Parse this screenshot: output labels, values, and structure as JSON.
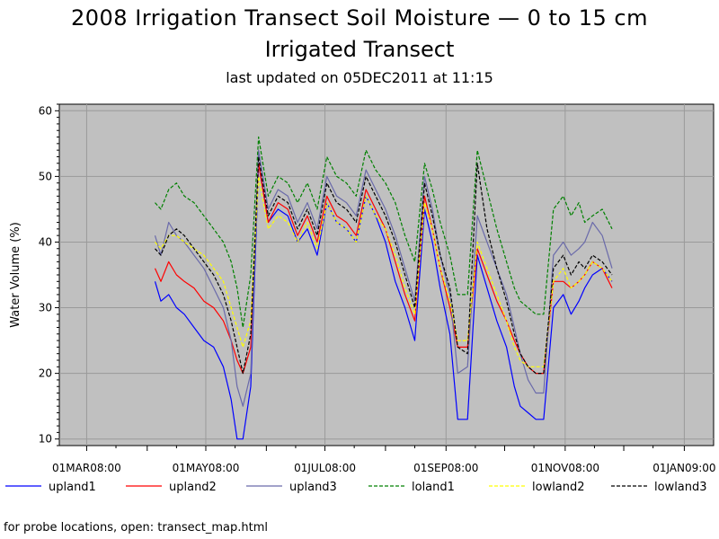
{
  "header": {
    "title": "2008 Irrigation Transect Soil Moisture — 0 to 15 cm",
    "subtitle": "Irrigated Transect",
    "updated": "last updated on 05DEC2011 at 11:15"
  },
  "footer": {
    "note": "for probe locations, open: transect_map.html"
  },
  "chart_data": {
    "type": "line",
    "title": "2008 Irrigation Transect Soil Moisture — 0 to 15 cm",
    "subtitle": "Irrigated Transect",
    "xlabel": "",
    "ylabel": "Water Volume (%)",
    "xlim": [
      "2008-02-16",
      "2009-01-16"
    ],
    "ylim": [
      9,
      61
    ],
    "yticks": [
      10,
      20,
      30,
      40,
      50,
      60
    ],
    "xticks": [
      {
        "date": "2008-03-01",
        "label": "01MAR08:00"
      },
      {
        "date": "2008-05-01",
        "label": "01MAY08:00"
      },
      {
        "date": "2008-07-01",
        "label": "01JUL08:00"
      },
      {
        "date": "2008-09-01",
        "label": "01SEP08:00"
      },
      {
        "date": "2008-11-01",
        "label": "01NOV08:00"
      },
      {
        "date": "2009-01-01",
        "label": "01JAN09:00"
      }
    ],
    "grid": true,
    "background": "#c0c0c0",
    "legend_position": "bottom",
    "series": [
      {
        "name": "upland1",
        "color": "#0000ff",
        "dash": "solid",
        "x": [
          "2008-04-05",
          "2008-04-08",
          "2008-04-12",
          "2008-04-16",
          "2008-04-20",
          "2008-04-25",
          "2008-04-30",
          "2008-05-05",
          "2008-05-10",
          "2008-05-14",
          "2008-05-17",
          "2008-05-20",
          "2008-05-24",
          "2008-05-28",
          "2008-06-02",
          "2008-06-07",
          "2008-06-12",
          "2008-06-17",
          "2008-06-22",
          "2008-06-27",
          "2008-07-02",
          "2008-07-07",
          "2008-07-12",
          "2008-07-17",
          "2008-07-22",
          "2008-07-27",
          "2008-08-01",
          "2008-08-06",
          "2008-08-11",
          "2008-08-16",
          "2008-08-21",
          "2008-08-25",
          "2008-08-29",
          "2008-09-03",
          "2008-09-07",
          "2008-09-12",
          "2008-09-17",
          "2008-09-22",
          "2008-09-27",
          "2008-10-02",
          "2008-10-06",
          "2008-10-09",
          "2008-10-13",
          "2008-10-17",
          "2008-10-21",
          "2008-10-26",
          "2008-10-31",
          "2008-11-04",
          "2008-11-08",
          "2008-11-11",
          "2008-11-15",
          "2008-11-20",
          "2008-11-25"
        ],
        "y": [
          34,
          31,
          32,
          30,
          29,
          27,
          25,
          24,
          21,
          16,
          10,
          10,
          18,
          52,
          43,
          45,
          44,
          40,
          42,
          38,
          46,
          43,
          42,
          40,
          47,
          44,
          40,
          34,
          30,
          25,
          45,
          40,
          33,
          26,
          13,
          13,
          38,
          33,
          28,
          24,
          18,
          15,
          14,
          13,
          13,
          30,
          32,
          29,
          31,
          33,
          35,
          36,
          34
        ]
      },
      {
        "name": "upland2",
        "color": "#ff0000",
        "dash": "solid",
        "x": [
          "2008-04-05",
          "2008-04-08",
          "2008-04-12",
          "2008-04-16",
          "2008-04-20",
          "2008-04-25",
          "2008-04-30",
          "2008-05-05",
          "2008-05-10",
          "2008-05-14",
          "2008-05-17",
          "2008-05-20",
          "2008-05-24",
          "2008-05-28",
          "2008-06-02",
          "2008-06-07",
          "2008-06-12",
          "2008-06-17",
          "2008-06-22",
          "2008-06-27",
          "2008-07-02",
          "2008-07-07",
          "2008-07-12",
          "2008-07-17",
          "2008-07-22",
          "2008-07-27",
          "2008-08-01",
          "2008-08-06",
          "2008-08-11",
          "2008-08-16",
          "2008-08-21",
          "2008-08-25",
          "2008-08-29",
          "2008-09-03",
          "2008-09-07",
          "2008-09-12",
          "2008-09-17",
          "2008-09-22",
          "2008-09-27",
          "2008-10-02",
          "2008-10-06",
          "2008-10-09",
          "2008-10-13",
          "2008-10-17",
          "2008-10-21",
          "2008-10-26",
          "2008-10-31",
          "2008-11-04",
          "2008-11-08",
          "2008-11-11",
          "2008-11-15",
          "2008-11-20",
          "2008-11-25"
        ],
        "y": [
          36,
          34,
          37,
          35,
          34,
          33,
          31,
          30,
          28,
          25,
          22,
          20,
          24,
          52,
          43,
          46,
          45,
          41,
          44,
          40,
          47,
          44,
          43,
          41,
          48,
          45,
          42,
          37,
          32,
          28,
          47,
          42,
          36,
          30,
          24,
          24,
          39,
          35,
          31,
          28,
          25,
          23,
          21,
          20,
          20,
          34,
          34,
          33,
          34,
          35,
          37,
          36,
          33
        ]
      },
      {
        "name": "upland3",
        "color": "#6a6aaa",
        "dash": "solid",
        "x": [
          "2008-04-05",
          "2008-04-08",
          "2008-04-12",
          "2008-04-16",
          "2008-04-20",
          "2008-04-25",
          "2008-04-30",
          "2008-05-05",
          "2008-05-10",
          "2008-05-14",
          "2008-05-17",
          "2008-05-20",
          "2008-05-24",
          "2008-05-28",
          "2008-06-02",
          "2008-06-07",
          "2008-06-12",
          "2008-06-17",
          "2008-06-22",
          "2008-06-27",
          "2008-07-02",
          "2008-07-07",
          "2008-07-12",
          "2008-07-17",
          "2008-07-22",
          "2008-07-27",
          "2008-08-01",
          "2008-08-06",
          "2008-08-11",
          "2008-08-16",
          "2008-08-21",
          "2008-08-25",
          "2008-08-29",
          "2008-09-03",
          "2008-09-07",
          "2008-09-12",
          "2008-09-17",
          "2008-09-22",
          "2008-09-27",
          "2008-10-02",
          "2008-10-06",
          "2008-10-09",
          "2008-10-13",
          "2008-10-17",
          "2008-10-21",
          "2008-10-26",
          "2008-10-31",
          "2008-11-04",
          "2008-11-08",
          "2008-11-11",
          "2008-11-15",
          "2008-11-20",
          "2008-11-25"
        ],
        "y": [
          41,
          38,
          43,
          41,
          40,
          38,
          36,
          33,
          30,
          25,
          18,
          15,
          20,
          54,
          45,
          48,
          47,
          43,
          46,
          42,
          50,
          47,
          46,
          44,
          51,
          48,
          45,
          41,
          36,
          31,
          50,
          45,
          38,
          32,
          20,
          21,
          44,
          40,
          36,
          32,
          27,
          23,
          19,
          17,
          17,
          38,
          40,
          38,
          39,
          40,
          43,
          41,
          36
        ]
      },
      {
        "name": "loland1",
        "color": "#008000",
        "dash": "dashed",
        "x": [
          "2008-04-05",
          "2008-04-08",
          "2008-04-12",
          "2008-04-16",
          "2008-04-20",
          "2008-04-25",
          "2008-04-30",
          "2008-05-05",
          "2008-05-10",
          "2008-05-14",
          "2008-05-17",
          "2008-05-20",
          "2008-05-24",
          "2008-05-28",
          "2008-06-02",
          "2008-06-07",
          "2008-06-12",
          "2008-06-17",
          "2008-06-22",
          "2008-06-27",
          "2008-07-02",
          "2008-07-07",
          "2008-07-12",
          "2008-07-17",
          "2008-07-22",
          "2008-07-27",
          "2008-08-01",
          "2008-08-06",
          "2008-08-11",
          "2008-08-16",
          "2008-08-21",
          "2008-08-25",
          "2008-08-29",
          "2008-09-03",
          "2008-09-07",
          "2008-09-12",
          "2008-09-17",
          "2008-09-22",
          "2008-09-27",
          "2008-10-02",
          "2008-10-06",
          "2008-10-09",
          "2008-10-13",
          "2008-10-17",
          "2008-10-21",
          "2008-10-26",
          "2008-10-31",
          "2008-11-04",
          "2008-11-08",
          "2008-11-11",
          "2008-11-15",
          "2008-11-20",
          "2008-11-25"
        ],
        "y": [
          46,
          45,
          48,
          49,
          47,
          46,
          44,
          42,
          40,
          37,
          33,
          27,
          35,
          56,
          47,
          50,
          49,
          46,
          49,
          45,
          53,
          50,
          49,
          47,
          54,
          51,
          49,
          46,
          41,
          37,
          52,
          48,
          43,
          38,
          32,
          32,
          54,
          48,
          42,
          37,
          33,
          31,
          30,
          29,
          29,
          45,
          47,
          44,
          46,
          43,
          44,
          45,
          42
        ]
      },
      {
        "name": "lowland2",
        "color": "#ffff00",
        "dash": "dashed",
        "x": [
          "2008-04-05",
          "2008-04-08",
          "2008-04-12",
          "2008-04-16",
          "2008-04-20",
          "2008-04-25",
          "2008-04-30",
          "2008-05-05",
          "2008-05-10",
          "2008-05-14",
          "2008-05-17",
          "2008-05-20",
          "2008-05-24",
          "2008-05-28",
          "2008-06-02",
          "2008-06-07",
          "2008-06-12",
          "2008-06-17",
          "2008-06-22",
          "2008-06-27",
          "2008-07-02",
          "2008-07-07",
          "2008-07-12",
          "2008-07-17",
          "2008-07-22",
          "2008-07-27",
          "2008-08-01",
          "2008-08-06",
          "2008-08-11",
          "2008-08-16",
          "2008-08-21",
          "2008-08-25",
          "2008-08-29",
          "2008-09-03",
          "2008-09-07",
          "2008-09-12",
          "2008-09-17",
          "2008-09-22",
          "2008-09-27",
          "2008-10-02",
          "2008-10-06",
          "2008-10-09",
          "2008-10-13",
          "2008-10-17",
          "2008-10-21",
          "2008-10-26",
          "2008-10-31",
          "2008-11-04",
          "2008-11-08",
          "2008-11-11",
          "2008-11-15",
          "2008-11-20",
          "2008-11-25"
        ],
        "y": [
          40,
          39,
          41,
          41,
          40,
          39,
          38,
          36,
          34,
          30,
          27,
          24,
          28,
          50,
          42,
          44,
          43,
          40,
          43,
          39,
          46,
          43,
          42,
          40,
          47,
          44,
          42,
          38,
          33,
          29,
          46,
          42,
          36,
          31,
          25,
          25,
          40,
          36,
          32,
          28,
          24,
          22,
          21,
          21,
          21,
          34,
          36,
          33,
          34,
          35,
          37,
          36,
          34
        ]
      },
      {
        "name": "lowland3",
        "color": "#000000",
        "dash": "dashed",
        "x": [
          "2008-04-05",
          "2008-04-08",
          "2008-04-12",
          "2008-04-16",
          "2008-04-20",
          "2008-04-25",
          "2008-04-30",
          "2008-05-05",
          "2008-05-10",
          "2008-05-14",
          "2008-05-17",
          "2008-05-20",
          "2008-05-24",
          "2008-05-28",
          "2008-06-02",
          "2008-06-07",
          "2008-06-12",
          "2008-06-17",
          "2008-06-22",
          "2008-06-27",
          "2008-07-02",
          "2008-07-07",
          "2008-07-12",
          "2008-07-17",
          "2008-07-22",
          "2008-07-27",
          "2008-08-01",
          "2008-08-06",
          "2008-08-11",
          "2008-08-16",
          "2008-08-21",
          "2008-08-25",
          "2008-08-29",
          "2008-09-03",
          "2008-09-07",
          "2008-09-12",
          "2008-09-17",
          "2008-09-22",
          "2008-09-27",
          "2008-10-02",
          "2008-10-06",
          "2008-10-09",
          "2008-10-13",
          "2008-10-17",
          "2008-10-21",
          "2008-10-26",
          "2008-10-31",
          "2008-11-04",
          "2008-11-08",
          "2008-11-11",
          "2008-11-15",
          "2008-11-20",
          "2008-11-25"
        ],
        "y": [
          39,
          38,
          41,
          42,
          41,
          39,
          37,
          35,
          32,
          28,
          24,
          20,
          26,
          53,
          44,
          47,
          46,
          42,
          45,
          41,
          49,
          46,
          45,
          43,
          50,
          47,
          44,
          40,
          35,
          30,
          49,
          44,
          38,
          33,
          24,
          23,
          52,
          42,
          36,
          31,
          26,
          23,
          21,
          20,
          20,
          36,
          38,
          35,
          37,
          36,
          38,
          37,
          35
        ]
      }
    ]
  }
}
